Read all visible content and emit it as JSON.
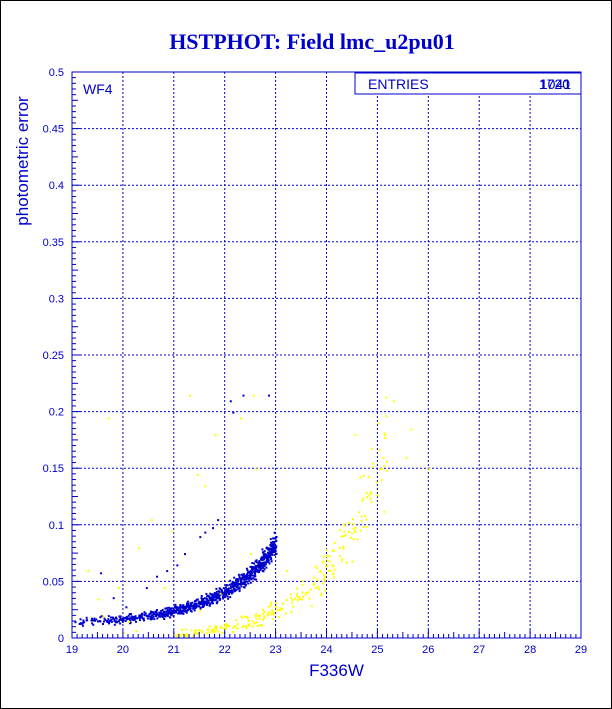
{
  "chart_data": {
    "type": "scatter",
    "title": "HSTPHOT: Field lmc_u2pu01",
    "xlabel": "F336W",
    "ylabel": "photometric error",
    "xlim": [
      19,
      29
    ],
    "ylim": [
      0,
      0.5
    ],
    "xticks": [
      "19",
      "20",
      "21",
      "22",
      "23",
      "24",
      "25",
      "26",
      "27",
      "28",
      "29"
    ],
    "yticks": [
      "0",
      "0.05",
      "0.1",
      "0.15",
      "0.2",
      "0.25",
      "0.3",
      "0.35",
      "0.4",
      "0.45",
      "0.5"
    ],
    "grid": true,
    "panel_label": "WF4",
    "stats_box": {
      "label": "ENTRIES",
      "values": [
        "1720",
        "1041"
      ]
    },
    "series": [
      {
        "color": "#0000cc",
        "curve": {
          "x0": 19,
          "y0": 0.0147,
          "scale": 0.00195,
          "rate": 0.9,
          "xmax": 23.0,
          "ymax": 0.22
        },
        "points": [
          [
            19.55,
            0.058
          ],
          [
            19.8,
            0.036
          ],
          [
            20.05,
            0.028
          ],
          [
            20.45,
            0.045
          ],
          [
            20.65,
            0.055
          ],
          [
            20.85,
            0.06
          ],
          [
            21.05,
            0.065
          ],
          [
            21.2,
            0.075
          ],
          [
            21.5,
            0.09
          ],
          [
            21.6,
            0.094
          ],
          [
            21.75,
            0.098
          ],
          [
            21.85,
            0.105
          ],
          [
            22.1,
            0.21
          ],
          [
            22.15,
            0.2
          ],
          [
            22.35,
            0.215
          ],
          [
            22.85,
            0.215
          ]
        ]
      },
      {
        "color": "#ffff00",
        "curve": {
          "x0": 21.0,
          "y0": 0.004,
          "scale": 0.0038,
          "rate": 0.93,
          "xmax": 25.7,
          "ymax": 0.185
        },
        "points": [
          [
            19.3,
            0.06
          ],
          [
            19.5,
            0.035
          ],
          [
            19.6,
            0.02
          ],
          [
            19.7,
            0.195
          ],
          [
            19.9,
            0.045
          ],
          [
            20.1,
            0.015
          ],
          [
            20.3,
            0.08
          ],
          [
            20.55,
            0.105
          ],
          [
            20.8,
            0.045
          ],
          [
            20.95,
            0.095
          ],
          [
            21.3,
            0.215
          ],
          [
            21.45,
            0.145
          ],
          [
            21.5,
            0.025
          ],
          [
            21.6,
            0.135
          ],
          [
            21.8,
            0.18
          ],
          [
            21.9,
            0.04
          ],
          [
            22.3,
            0.195
          ],
          [
            22.5,
            0.075
          ],
          [
            22.55,
            0.215
          ],
          [
            22.6,
            0.15
          ],
          [
            23.2,
            0.06
          ],
          [
            23.5,
            0.035
          ],
          [
            24.0,
            0.065
          ],
          [
            24.55,
            0.18
          ],
          [
            25.1,
            0.16
          ],
          [
            25.3,
            0.21
          ],
          [
            25.55,
            0.16
          ],
          [
            25.65,
            0.185
          ],
          [
            26.0,
            0.15
          ],
          [
            20.0,
            0.005
          ],
          [
            20.25,
            0.007
          ]
        ]
      }
    ]
  }
}
